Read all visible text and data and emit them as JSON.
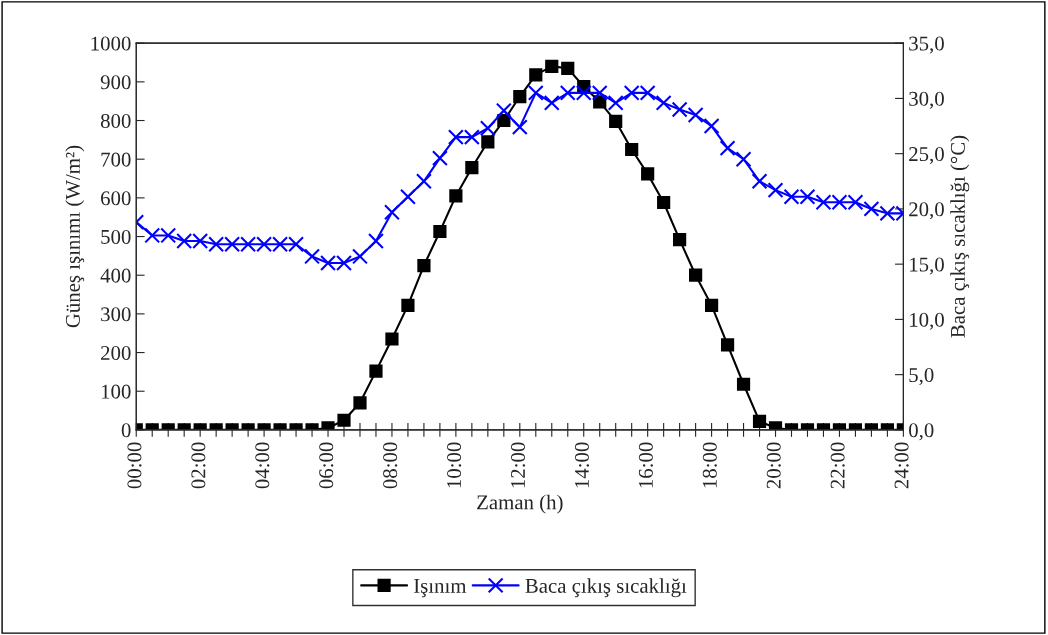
{
  "chart_data": {
    "type": "line",
    "xlabel": "Zaman (h)",
    "ylabel": "Güneş ışınımı (W/m²)",
    "y2label": "Baca çıkış sıcaklığı (°C)",
    "x": [
      0,
      0.5,
      1,
      1.5,
      2,
      2.5,
      3,
      3.5,
      4,
      4.5,
      5,
      5.5,
      6,
      6.5,
      7,
      7.5,
      8,
      8.5,
      9,
      9.5,
      10,
      10.5,
      11,
      11.5,
      12,
      12.5,
      13,
      13.5,
      14,
      14.5,
      15,
      15.5,
      16,
      16.5,
      17,
      17.5,
      18,
      18.5,
      19,
      19.5,
      20,
      20.5,
      21,
      21.5,
      22,
      22.5,
      23,
      23.5,
      24
    ],
    "series": [
      {
        "name": "Işınım",
        "color": "#000000",
        "marker": "square",
        "values": [
          0,
          0,
          0,
          0,
          0,
          0,
          0,
          0,
          0,
          0,
          0,
          0,
          5,
          25,
          70,
          152,
          235,
          322,
          425,
          513,
          605,
          678,
          745,
          800,
          862,
          918,
          940,
          935,
          888,
          848,
          798,
          725,
          662,
          588,
          492,
          400,
          322,
          220,
          118,
          22,
          5,
          0,
          0,
          0,
          0,
          0,
          0,
          0,
          0
        ]
      },
      {
        "name": "Baca çıkış sıcaklığı",
        "color": "#0000ff",
        "marker": "cross",
        "axis": "y2",
        "values": [
          18.8,
          17.6,
          17.6,
          17.1,
          17.1,
          16.8,
          16.8,
          16.8,
          16.8,
          16.8,
          16.8,
          15.7,
          15.1,
          15.1,
          15.7,
          17.1,
          19.7,
          21.1,
          22.5,
          24.6,
          26.5,
          26.5,
          27.3,
          28.9,
          27.4,
          30.5,
          29.6,
          30.5,
          30.5,
          30.5,
          29.6,
          30.5,
          30.5,
          29.6,
          29.0,
          28.5,
          27.5,
          25.5,
          24.5,
          22.5,
          21.7,
          21.1,
          21.1,
          20.6,
          20.6,
          20.6,
          20.0,
          19.6,
          19.6
        ]
      }
    ],
    "xlim": [
      0,
      24
    ],
    "xticks": [
      {
        "value": 0,
        "label": "00:00"
      },
      {
        "value": 0.5,
        "label": null
      },
      {
        "value": 1,
        "label": null
      },
      {
        "value": 1.5,
        "label": null
      },
      {
        "value": 2,
        "label": "02:00"
      },
      {
        "value": 2.5,
        "label": null
      },
      {
        "value": 3,
        "label": null
      },
      {
        "value": 3.5,
        "label": null
      },
      {
        "value": 4,
        "label": "04:00"
      },
      {
        "value": 4.5,
        "label": null
      },
      {
        "value": 5,
        "label": null
      },
      {
        "value": 5.5,
        "label": null
      },
      {
        "value": 6,
        "label": "06:00"
      },
      {
        "value": 6.5,
        "label": null
      },
      {
        "value": 7,
        "label": null
      },
      {
        "value": 7.5,
        "label": null
      },
      {
        "value": 8,
        "label": "08:00"
      },
      {
        "value": 8.5,
        "label": null
      },
      {
        "value": 9,
        "label": null
      },
      {
        "value": 9.5,
        "label": null
      },
      {
        "value": 10,
        "label": "10:00"
      },
      {
        "value": 10.5,
        "label": null
      },
      {
        "value": 11,
        "label": null
      },
      {
        "value": 11.5,
        "label": null
      },
      {
        "value": 12,
        "label": "12:00"
      },
      {
        "value": 12.5,
        "label": null
      },
      {
        "value": 13,
        "label": null
      },
      {
        "value": 13.5,
        "label": null
      },
      {
        "value": 14,
        "label": "14:00"
      },
      {
        "value": 14.5,
        "label": null
      },
      {
        "value": 15,
        "label": null
      },
      {
        "value": 15.5,
        "label": null
      },
      {
        "value": 16,
        "label": "16:00"
      },
      {
        "value": 16.5,
        "label": null
      },
      {
        "value": 17,
        "label": null
      },
      {
        "value": 17.5,
        "label": null
      },
      {
        "value": 18,
        "label": "18:00"
      },
      {
        "value": 18.5,
        "label": null
      },
      {
        "value": 19,
        "label": null
      },
      {
        "value": 19.5,
        "label": null
      },
      {
        "value": 20,
        "label": "20:00"
      },
      {
        "value": 20.5,
        "label": null
      },
      {
        "value": 21,
        "label": null
      },
      {
        "value": 21.5,
        "label": null
      },
      {
        "value": 22,
        "label": "22:00"
      },
      {
        "value": 22.5,
        "label": null
      },
      {
        "value": 23,
        "label": null
      },
      {
        "value": 23.5,
        "label": null
      },
      {
        "value": 24,
        "label": "24:00"
      }
    ],
    "ylim": [
      0,
      1000
    ],
    "yticks": [
      0,
      100,
      200,
      300,
      400,
      500,
      600,
      700,
      800,
      900,
      1000
    ],
    "y2lim": [
      0,
      35
    ],
    "y2ticks": [
      {
        "value": 0,
        "label": "0,0"
      },
      {
        "value": 5,
        "label": "5,0"
      },
      {
        "value": 10,
        "label": "10,0"
      },
      {
        "value": 15,
        "label": "15,0"
      },
      {
        "value": 20,
        "label": "20,0"
      },
      {
        "value": 25,
        "label": "25,0"
      },
      {
        "value": 30,
        "label": "30,0"
      },
      {
        "value": 35,
        "label": "35,0"
      }
    ],
    "grid": false,
    "legend": "bottom",
    "line_style": "solid"
  }
}
